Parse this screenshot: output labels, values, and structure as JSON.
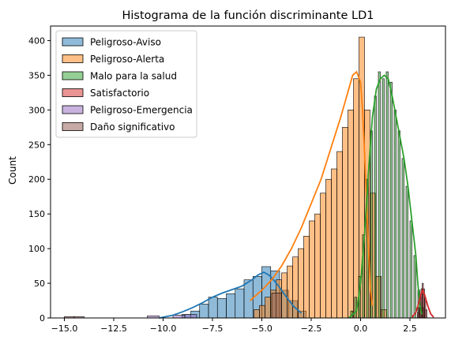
{
  "chart_data": {
    "type": "histogram",
    "title": "Histograma de la función discriminante LD1",
    "xlabel": "",
    "ylabel": "Count",
    "xlim": [
      -15.7,
      4.3
    ],
    "ylim": [
      0,
      421
    ],
    "xticks": [
      -15.0,
      -12.5,
      -10.0,
      -7.5,
      -5.0,
      -2.5,
      0.0,
      2.5
    ],
    "xtick_labels": [
      "−15.0",
      "−12.5",
      "−10.0",
      "−7.5",
      "−5.0",
      "−2.5",
      "0.0",
      "2.5"
    ],
    "yticks": [
      0,
      50,
      100,
      150,
      200,
      250,
      300,
      350,
      400
    ],
    "grid": false,
    "legend_position": "upper-left",
    "series": [
      {
        "name": "Peligroso-Aviso",
        "color": "#1f77b4",
        "bin_width": 0.45,
        "bins": [
          {
            "x0": -9.05,
            "count": 5
          },
          {
            "x0": -8.6,
            "count": 10
          },
          {
            "x0": -8.15,
            "count": 20
          },
          {
            "x0": -7.7,
            "count": 30
          },
          {
            "x0": -7.25,
            "count": 28
          },
          {
            "x0": -6.8,
            "count": 35
          },
          {
            "x0": -6.35,
            "count": 42
          },
          {
            "x0": -5.9,
            "count": 55
          },
          {
            "x0": -5.45,
            "count": 60
          },
          {
            "x0": -5.0,
            "count": 74
          },
          {
            "x0": -4.55,
            "count": 68
          },
          {
            "x0": -4.1,
            "count": 40
          },
          {
            "x0": -3.65,
            "count": 25
          },
          {
            "x0": -3.2,
            "count": 10
          }
        ],
        "kde": [
          [
            -10.2,
            0
          ],
          [
            -9.5,
            4
          ],
          [
            -9.0,
            9
          ],
          [
            -8.5,
            15
          ],
          [
            -8.0,
            22
          ],
          [
            -7.5,
            30
          ],
          [
            -7.0,
            36
          ],
          [
            -6.5,
            41
          ],
          [
            -6.0,
            46
          ],
          [
            -5.5,
            55
          ],
          [
            -5.2,
            62
          ],
          [
            -4.9,
            66
          ],
          [
            -4.6,
            61
          ],
          [
            -4.2,
            48
          ],
          [
            -3.8,
            32
          ],
          [
            -3.4,
            17
          ],
          [
            -3.0,
            7
          ]
        ]
      },
      {
        "name": "Peligroso-Alerta",
        "color": "#ff7f0e",
        "bin_width": 0.28,
        "bins": [
          {
            "x0": -5.4,
            "count": 12
          },
          {
            "x0": -5.12,
            "count": 18
          },
          {
            "x0": -4.84,
            "count": 30
          },
          {
            "x0": -4.56,
            "count": 40
          },
          {
            "x0": -4.28,
            "count": 55
          },
          {
            "x0": -4.0,
            "count": 65
          },
          {
            "x0": -3.72,
            "count": 75
          },
          {
            "x0": -3.44,
            "count": 88
          },
          {
            "x0": -3.16,
            "count": 100
          },
          {
            "x0": -2.88,
            "count": 118
          },
          {
            "x0": -2.6,
            "count": 140
          },
          {
            "x0": -2.32,
            "count": 150
          },
          {
            "x0": -2.04,
            "count": 180
          },
          {
            "x0": -1.76,
            "count": 200
          },
          {
            "x0": -1.48,
            "count": 215
          },
          {
            "x0": -1.2,
            "count": 240
          },
          {
            "x0": -0.92,
            "count": 275
          },
          {
            "x0": -0.64,
            "count": 300
          },
          {
            "x0": -0.36,
            "count": 345
          },
          {
            "x0": -0.08,
            "count": 405
          },
          {
            "x0": 0.2,
            "count": 300
          },
          {
            "x0": 0.48,
            "count": 180
          },
          {
            "x0": 0.76,
            "count": 60
          },
          {
            "x0": 1.04,
            "count": 12
          }
        ],
        "kde": [
          [
            -5.6,
            25
          ],
          [
            -5.0,
            40
          ],
          [
            -4.5,
            55
          ],
          [
            -4.0,
            75
          ],
          [
            -3.5,
            100
          ],
          [
            -3.0,
            130
          ],
          [
            -2.5,
            165
          ],
          [
            -2.0,
            200
          ],
          [
            -1.5,
            245
          ],
          [
            -1.0,
            290
          ],
          [
            -0.6,
            330
          ],
          [
            -0.4,
            350
          ],
          [
            -0.2,
            355
          ],
          [
            0.0,
            340
          ],
          [
            0.1,
            300
          ],
          [
            0.2,
            240
          ],
          [
            0.3,
            170
          ],
          [
            0.4,
            100
          ],
          [
            0.5,
            40
          ],
          [
            0.6,
            18
          ]
        ]
      },
      {
        "name": "Malo para la salud",
        "color": "#2ca02c",
        "bin_width": 0.1,
        "bins": [
          {
            "x0": -0.5,
            "count": 10
          },
          {
            "x0": -0.3,
            "count": 30
          },
          {
            "x0": -0.1,
            "count": 60
          },
          {
            "x0": 0.1,
            "count": 120
          },
          {
            "x0": 0.3,
            "count": 200
          },
          {
            "x0": 0.5,
            "count": 270
          },
          {
            "x0": 0.7,
            "count": 320
          },
          {
            "x0": 0.9,
            "count": 355
          },
          {
            "x0": 1.1,
            "count": 345
          },
          {
            "x0": 1.3,
            "count": 355
          },
          {
            "x0": 1.5,
            "count": 340
          },
          {
            "x0": 1.7,
            "count": 300
          },
          {
            "x0": 1.9,
            "count": 270
          },
          {
            "x0": 2.1,
            "count": 230
          },
          {
            "x0": 2.3,
            "count": 190
          },
          {
            "x0": 2.5,
            "count": 140
          },
          {
            "x0": 2.7,
            "count": 90
          },
          {
            "x0": 2.9,
            "count": 40
          },
          {
            "x0": 3.1,
            "count": 15
          }
        ],
        "kde": [
          [
            -0.6,
            0
          ],
          [
            -0.2,
            10
          ],
          [
            0.0,
            50
          ],
          [
            0.2,
            120
          ],
          [
            0.4,
            210
          ],
          [
            0.6,
            290
          ],
          [
            0.8,
            330
          ],
          [
            1.0,
            345
          ],
          [
            1.2,
            350
          ],
          [
            1.4,
            345
          ],
          [
            1.6,
            320
          ],
          [
            1.8,
            290
          ],
          [
            2.0,
            260
          ],
          [
            2.2,
            230
          ],
          [
            2.4,
            190
          ],
          [
            2.6,
            140
          ],
          [
            2.8,
            90
          ],
          [
            2.9,
            50
          ],
          [
            3.0,
            20
          ],
          [
            3.1,
            5
          ]
        ]
      },
      {
        "name": "Satisfactorio",
        "color": "#d62728",
        "bin_width": 0.06,
        "bins": [
          {
            "x0": 2.88,
            "count": 8
          },
          {
            "x0": 2.94,
            "count": 15
          },
          {
            "x0": 3.0,
            "count": 30
          },
          {
            "x0": 3.06,
            "count": 42
          },
          {
            "x0": 3.12,
            "count": 50
          },
          {
            "x0": 3.18,
            "count": 42
          },
          {
            "x0": 3.24,
            "count": 28
          },
          {
            "x0": 3.3,
            "count": 12
          }
        ],
        "kde": [
          [
            2.6,
            1
          ],
          [
            2.8,
            8
          ],
          [
            2.95,
            22
          ],
          [
            3.05,
            34
          ],
          [
            3.15,
            40
          ],
          [
            3.25,
            33
          ],
          [
            3.4,
            18
          ],
          [
            3.55,
            6
          ],
          [
            3.7,
            1
          ]
        ]
      },
      {
        "name": "Peligroso-Emergencia",
        "color": "#9467bd",
        "bin_width": 0.6,
        "bins": [
          {
            "x0": -10.8,
            "count": 3
          },
          {
            "x0": -9.5,
            "count": 4
          },
          {
            "x0": -8.9,
            "count": 5
          }
        ],
        "kde": []
      },
      {
        "name": "Daño significativo",
        "color": "#8c564b",
        "bin_width": 0.5,
        "bins": [
          {
            "x0": -15.0,
            "count": 2
          },
          {
            "x0": -14.5,
            "count": 2
          },
          {
            "x0": -4.5,
            "count": 36
          }
        ],
        "kde": []
      }
    ]
  }
}
